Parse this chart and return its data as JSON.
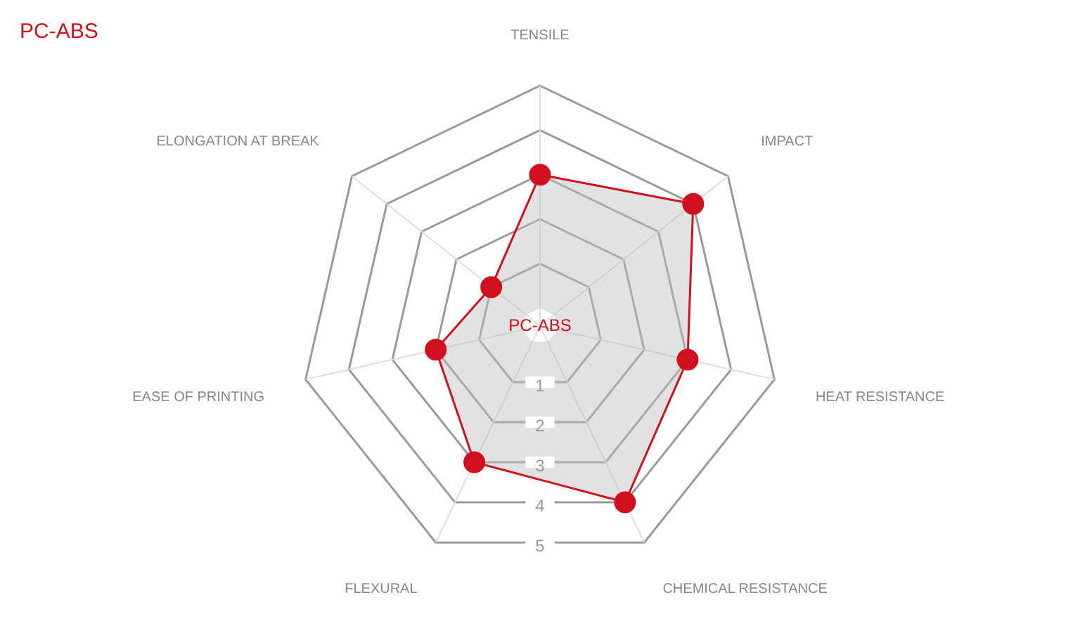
{
  "chart_data": {
    "type": "radar",
    "title": "PC-ABS",
    "categories": [
      "TENSILE",
      "IMPACT",
      "HEAT RESISTANCE",
      "CHEMICAL RESISTANCE",
      "FLEXURAL",
      "EASE OF PRINTING",
      "ELONGATION AT BREAK"
    ],
    "series": [
      {
        "name": "PC-ABS",
        "color": "#d0101e",
        "values": [
          3,
          4,
          3,
          4,
          3,
          2,
          1
        ]
      }
    ],
    "ylim": [
      -0.4,
      5
    ],
    "yticks": [
      1,
      2,
      3,
      4,
      5
    ],
    "grid": true,
    "legend": false,
    "marker": "circle"
  }
}
